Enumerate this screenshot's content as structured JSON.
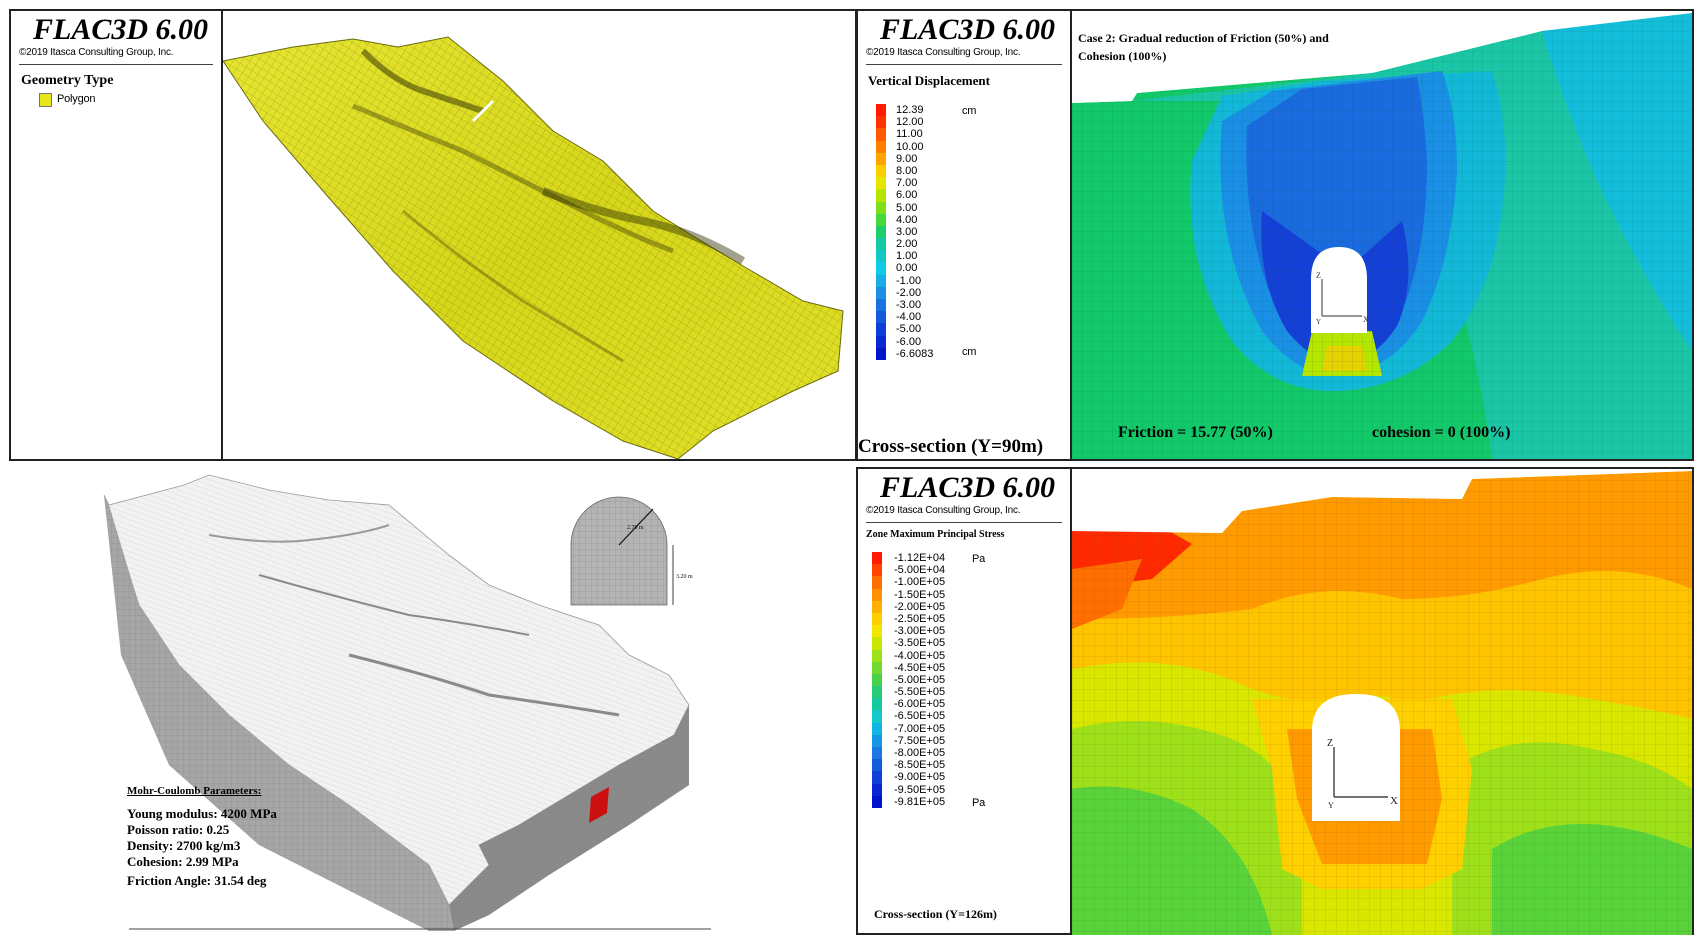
{
  "panel_tl": {
    "title": "FLAC3D 6.00",
    "copyright": "©2019 Itasca Consulting Group, Inc.",
    "legend_heading": "Geometry Type",
    "legend_item": "Polygon",
    "legend_color": "#e6e61a"
  },
  "panel_tr": {
    "title": "FLAC3D 6.00",
    "copyright": "©2019 Itasca Consulting Group, Inc.",
    "legend_heading": "Vertical Displacement",
    "scale_values": [
      "12.39",
      "12.00",
      "11.00",
      "10.00",
      "9.00",
      "8.00",
      "7.00",
      "6.00",
      "5.00",
      "4.00",
      "3.00",
      "2.00",
      "1.00",
      "0.00",
      "-1.00",
      "-2.00",
      "-3.00",
      "-4.00",
      "-5.00",
      "-6.00",
      "-6.6083"
    ],
    "scale_colors": [
      "#ff1a00",
      "#ff3300",
      "#ff5a00",
      "#ff8000",
      "#ffa500",
      "#ffcc00",
      "#e8e600",
      "#b5e600",
      "#7ddf1a",
      "#45d93c",
      "#1fce6a",
      "#12c9a0",
      "#10c9c4",
      "#12c9e6",
      "#1aaee8",
      "#1f8fe6",
      "#1a72e0",
      "#1458dc",
      "#0d3fd8",
      "#0828d2",
      "#0014cc"
    ],
    "unit_top": "cm",
    "unit_bottom": "cm",
    "section_label": "Cross-section (Y=90m)",
    "case_title_1": "Case 2: Gradual reduction of Friction (50%) and",
    "case_title_2": "Cohesion (100%)",
    "friction_label": "Friction = 15.77 (50%)",
    "cohesion_label": "cohesion = 0 (100%)",
    "axis_z": "Z",
    "axis_x": "X",
    "axis_y": "Y"
  },
  "panel_bl": {
    "dim_radius": "2.70 m",
    "dim_height": "3.20 m",
    "params_heading": "Mohr-Coulomb Parameters:",
    "params": [
      "Young modulus: 4200  MPa",
      "Poisson ratio: 0.25",
      "Density: 2700 kg/m3",
      "Cohesion: 2.99   MPa",
      "Friction Angle: 31.54 deg"
    ]
  },
  "panel_br": {
    "title": "FLAC3D 6.00",
    "copyright": "©2019 Itasca Consulting Group, Inc.",
    "legend_heading": "Zone Maximum Principal Stress",
    "scale_values": [
      "-1.12E+04",
      "-5.00E+04",
      "-1.00E+05",
      "-1.50E+05",
      "-2.00E+05",
      "-2.50E+05",
      "-3.00E+05",
      "-3.50E+05",
      "-4.00E+05",
      "-4.50E+05",
      "-5.00E+05",
      "-5.50E+05",
      "-6.00E+05",
      "-6.50E+05",
      "-7.00E+05",
      "-7.50E+05",
      "-8.00E+05",
      "-8.50E+05",
      "-9.00E+05",
      "-9.50E+05",
      "-9.81E+05"
    ],
    "scale_colors": [
      "#ff1a00",
      "#ff4400",
      "#ff6e00",
      "#ff9200",
      "#ffb000",
      "#ffd000",
      "#f0e600",
      "#c8e600",
      "#9ee01a",
      "#72d930",
      "#48d24a",
      "#28cc74",
      "#18c89e",
      "#12c8c8",
      "#12b4e6",
      "#1896e6",
      "#1a78e0",
      "#145adc",
      "#0e40d8",
      "#0a28d2",
      "#0014cc"
    ],
    "unit_top": "Pa",
    "unit_bottom": "Pa",
    "section_label": "Cross-section (Y=126m)",
    "axis_z": "Z",
    "axis_x": "X",
    "axis_y": "Y"
  }
}
